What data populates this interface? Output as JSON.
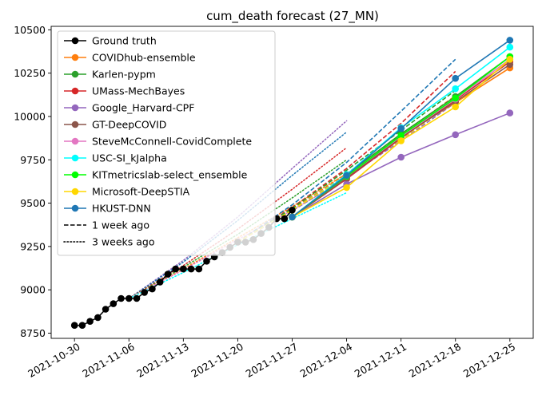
{
  "chart_data": {
    "type": "line",
    "title": "cum_death forecast (27_MN)",
    "xlabel": "",
    "ylabel": "",
    "x_ticks": [
      "2021-10-30",
      "2021-11-06",
      "2021-11-13",
      "2021-11-20",
      "2021-11-27",
      "2021-12-04",
      "2021-12-11",
      "2021-12-18",
      "2021-12-25"
    ],
    "y_ticks": [
      8750,
      9000,
      9250,
      9500,
      9750,
      10000,
      10250,
      10500
    ],
    "xlim": [
      "2021-10-27",
      "2021-12-28"
    ],
    "ylim": [
      8720,
      10520
    ],
    "grid": false,
    "legend_position": "top-left",
    "legend": [
      {
        "label": "Ground truth",
        "color": "#000000",
        "style": "solid",
        "marker": true
      },
      {
        "label": "COVIDhub-ensemble",
        "color": "#ff7f0e",
        "style": "solid",
        "marker": true
      },
      {
        "label": "Karlen-pypm",
        "color": "#2ca02c",
        "style": "solid",
        "marker": true
      },
      {
        "label": "UMass-MechBayes",
        "color": "#d62728",
        "style": "solid",
        "marker": true
      },
      {
        "label": "Google_Harvard-CPF",
        "color": "#9467bd",
        "style": "solid",
        "marker": true
      },
      {
        "label": "GT-DeepCOVID",
        "color": "#8c564b",
        "style": "solid",
        "marker": true
      },
      {
        "label": "SteveMcConnell-CovidComplete",
        "color": "#e377c2",
        "style": "solid",
        "marker": true
      },
      {
        "label": "USC-SI_kJalpha",
        "color": "#00ffff",
        "style": "solid",
        "marker": true
      },
      {
        "label": "KITmetricslab-select_ensemble",
        "color": "#00ff00",
        "style": "solid",
        "marker": true
      },
      {
        "label": "Microsoft-DeepSTIA",
        "color": "#ffd700",
        "style": "solid",
        "marker": true
      },
      {
        "label": "HKUST-DNN",
        "color": "#1f77b4",
        "style": "solid",
        "marker": true
      },
      {
        "label": "1 week ago",
        "color": "#000000",
        "style": "dashed",
        "marker": false
      },
      {
        "label": "3 weeks ago",
        "color": "#000000",
        "style": "dotted",
        "marker": false
      }
    ],
    "ground_truth": {
      "x": [
        "2021-10-30",
        "2021-10-31",
        "2021-11-01",
        "2021-11-02",
        "2021-11-03",
        "2021-11-04",
        "2021-11-05",
        "2021-11-06",
        "2021-11-07",
        "2021-11-08",
        "2021-11-09",
        "2021-11-10",
        "2021-11-11",
        "2021-11-12",
        "2021-11-13",
        "2021-11-14",
        "2021-11-15",
        "2021-11-16",
        "2021-11-17",
        "2021-11-18",
        "2021-11-19",
        "2021-11-20",
        "2021-11-21",
        "2021-11-22",
        "2021-11-23",
        "2021-11-24",
        "2021-11-25",
        "2021-11-26",
        "2021-11-27"
      ],
      "y": [
        8795,
        8795,
        8818,
        8840,
        8888,
        8920,
        8950,
        8950,
        8950,
        8985,
        9005,
        9045,
        9090,
        9120,
        9120,
        9120,
        9120,
        9165,
        9190,
        9215,
        9245,
        9275,
        9275,
        9290,
        9325,
        9360,
        9410,
        9410,
        9460
      ]
    },
    "forecasts": [
      {
        "name": "COVIDhub-ensemble",
        "color": "#ff7f0e",
        "x": [
          "2021-11-27",
          "2021-12-04",
          "2021-12-11",
          "2021-12-18",
          "2021-12-25"
        ],
        "y": [
          9420,
          9650,
          9885,
          10080,
          10280
        ]
      },
      {
        "name": "Karlen-pypm",
        "color": "#2ca02c",
        "x": [
          "2021-11-27",
          "2021-12-04",
          "2021-12-11",
          "2021-12-18",
          "2021-12-25"
        ],
        "y": [
          9420,
          9665,
          9900,
          10115,
          10345
        ]
      },
      {
        "name": "UMass-MechBayes",
        "color": "#d62728",
        "x": [
          "2021-11-27",
          "2021-12-04",
          "2021-12-11",
          "2021-12-18",
          "2021-12-25"
        ],
        "y": [
          9420,
          9640,
          9875,
          10095,
          10315
        ]
      },
      {
        "name": "Google_Harvard-CPF",
        "color": "#9467bd",
        "x": [
          "2021-11-27",
          "2021-12-04",
          "2021-12-11",
          "2021-12-18",
          "2021-12-25"
        ],
        "y": [
          9420,
          9610,
          9765,
          9895,
          10020
        ]
      },
      {
        "name": "GT-DeepCOVID",
        "color": "#8c564b",
        "x": [
          "2021-11-27",
          "2021-12-04",
          "2021-12-11",
          "2021-12-18",
          "2021-12-25"
        ],
        "y": [
          9420,
          9645,
          9880,
          10085,
          10300
        ]
      },
      {
        "name": "SteveMcConnell-CovidComplete",
        "color": "#e377c2",
        "x": [
          "2021-11-27",
          "2021-12-04",
          "2021-12-11",
          "2021-12-18",
          "2021-12-25"
        ],
        "y": [
          9420,
          9655,
          9885,
          10100,
          10330
        ]
      },
      {
        "name": "USC-SI_kJalpha",
        "color": "#00ffff",
        "x": [
          "2021-11-27",
          "2021-12-04",
          "2021-12-11",
          "2021-12-18",
          "2021-12-25"
        ],
        "y": [
          9420,
          9665,
          9935,
          10160,
          10400
        ]
      },
      {
        "name": "KITmetricslab-select_ensemble",
        "color": "#00ff00",
        "x": [
          "2021-11-27",
          "2021-12-04",
          "2021-12-11",
          "2021-12-18",
          "2021-12-25"
        ],
        "y": [
          9420,
          9655,
          9890,
          10105,
          10345
        ]
      },
      {
        "name": "Microsoft-DeepSTIA",
        "color": "#ffd700",
        "x": [
          "2021-11-27",
          "2021-12-04",
          "2021-12-11",
          "2021-12-18",
          "2021-12-25"
        ],
        "y": [
          9420,
          9590,
          9860,
          10055,
          10330
        ]
      },
      {
        "name": "HKUST-DNN",
        "color": "#1f77b4",
        "x": [
          "2021-11-27",
          "2021-12-04",
          "2021-12-11",
          "2021-12-18",
          "2021-12-25"
        ],
        "y": [
          9420,
          9660,
          9930,
          10220,
          10440
        ]
      }
    ],
    "forecasts_1_week_ago": [
      {
        "color": "#1f77b4",
        "x": [
          "2021-11-20",
          "2021-11-27",
          "2021-12-04",
          "2021-12-11",
          "2021-12-18"
        ],
        "y": [
          9275,
          9490,
          9735,
          10030,
          10330
        ]
      },
      {
        "color": "#d62728",
        "x": [
          "2021-11-20",
          "2021-11-27",
          "2021-12-04",
          "2021-12-11",
          "2021-12-18"
        ],
        "y": [
          9275,
          9475,
          9700,
          9960,
          10260
        ]
      },
      {
        "color": "#ff7f0e",
        "x": [
          "2021-11-20",
          "2021-11-27",
          "2021-12-04",
          "2021-12-11",
          "2021-12-18"
        ],
        "y": [
          9275,
          9465,
          9670,
          9895,
          10120
        ]
      },
      {
        "color": "#2ca02c",
        "x": [
          "2021-11-20",
          "2021-11-27",
          "2021-12-04",
          "2021-12-11",
          "2021-12-18"
        ],
        "y": [
          9275,
          9470,
          9690,
          9920,
          10150
        ]
      },
      {
        "color": "#00ffff",
        "x": [
          "2021-11-20",
          "2021-11-27",
          "2021-12-04",
          "2021-12-11",
          "2021-12-18"
        ],
        "y": [
          9275,
          9460,
          9660,
          9880,
          10100
        ]
      },
      {
        "color": "#9467bd",
        "x": [
          "2021-11-20",
          "2021-11-27",
          "2021-12-04",
          "2021-12-11",
          "2021-12-18"
        ],
        "y": [
          9275,
          9455,
          9650,
          9860,
          10080
        ]
      },
      {
        "color": "#ffd700",
        "x": [
          "2021-11-20",
          "2021-11-27",
          "2021-12-04",
          "2021-12-11",
          "2021-12-18"
        ],
        "y": [
          9275,
          9460,
          9655,
          9870,
          10090
        ]
      }
    ],
    "forecasts_3_weeks_ago": [
      {
        "color": "#9467bd",
        "x": [
          "2021-11-06",
          "2021-11-13",
          "2021-11-20",
          "2021-11-27",
          "2021-12-04"
        ],
        "y": [
          8950,
          9170,
          9420,
          9700,
          9975
        ]
      },
      {
        "color": "#1f77b4",
        "x": [
          "2021-11-06",
          "2021-11-13",
          "2021-11-20",
          "2021-11-27",
          "2021-12-04"
        ],
        "y": [
          8950,
          9160,
          9400,
          9660,
          9910
        ]
      },
      {
        "color": "#d62728",
        "x": [
          "2021-11-06",
          "2021-11-13",
          "2021-11-20",
          "2021-11-27",
          "2021-12-04"
        ],
        "y": [
          8950,
          9140,
          9350,
          9580,
          9820
        ]
      },
      {
        "color": "#2ca02c",
        "x": [
          "2021-11-06",
          "2021-11-13",
          "2021-11-20",
          "2021-11-27",
          "2021-12-04"
        ],
        "y": [
          8950,
          9130,
          9320,
          9530,
          9750
        ]
      },
      {
        "color": "#ff7f0e",
        "x": [
          "2021-11-06",
          "2021-11-13",
          "2021-11-20",
          "2021-11-27",
          "2021-12-04"
        ],
        "y": [
          8950,
          9120,
          9300,
          9480,
          9670
        ]
      },
      {
        "color": "#e377c2",
        "x": [
          "2021-11-06",
          "2021-11-13",
          "2021-11-20",
          "2021-11-27",
          "2021-12-04"
        ],
        "y": [
          8950,
          9115,
          9290,
          9460,
          9640
        ]
      },
      {
        "color": "#00ffff",
        "x": [
          "2021-11-06",
          "2021-11-13",
          "2021-11-20",
          "2021-11-27",
          "2021-12-04"
        ],
        "y": [
          8950,
          9100,
          9260,
          9410,
          9560
        ]
      }
    ]
  }
}
